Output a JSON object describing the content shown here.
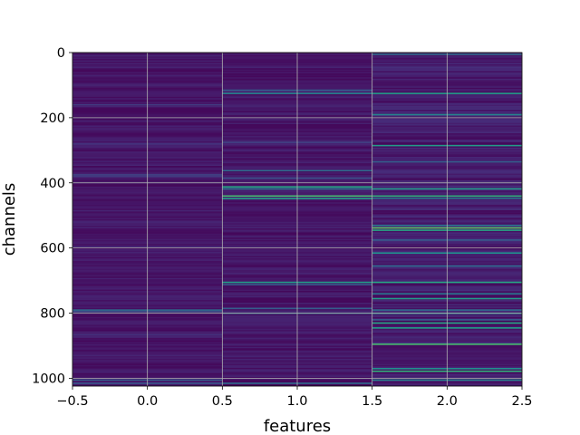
{
  "chart_data": {
    "type": "heatmap",
    "title": "",
    "xlabel": "features",
    "ylabel": "channels",
    "xlim": [
      -0.5,
      2.5
    ],
    "ylim": [
      1024,
      0
    ],
    "y_inverted": true,
    "x_ticks": [
      -0.5,
      0.0,
      0.5,
      1.0,
      1.5,
      2.0,
      2.5
    ],
    "x_tick_labels": [
      "−0.5",
      "0.0",
      "0.5",
      "1.0",
      "1.5",
      "2.0",
      "2.5"
    ],
    "y_ticks": [
      0,
      200,
      400,
      600,
      800,
      1000
    ],
    "y_tick_labels": [
      "0",
      "200",
      "400",
      "600",
      "800",
      "1000"
    ],
    "grid": true,
    "colormap": "viridis",
    "background_color": "#440154",
    "n_columns": 3,
    "n_rows": 1024,
    "columns": [
      {
        "feature": 0,
        "highlights": [
          {
            "channel": 160,
            "value": 0.18
          },
          {
            "channel": 280,
            "value": 0.15
          },
          {
            "channel": 375,
            "value": 0.2
          },
          {
            "channel": 380,
            "value": 0.18
          },
          {
            "channel": 595,
            "value": 0.12
          },
          {
            "channel": 790,
            "value": 0.35
          },
          {
            "channel": 795,
            "value": 0.25
          },
          {
            "channel": 865,
            "value": 0.15
          },
          {
            "channel": 1005,
            "value": 0.3
          },
          {
            "channel": 1015,
            "value": 0.28
          }
        ]
      },
      {
        "feature": 1,
        "highlights": [
          {
            "channel": 115,
            "value": 0.3
          },
          {
            "channel": 125,
            "value": 0.45
          },
          {
            "channel": 275,
            "value": 0.2
          },
          {
            "channel": 362,
            "value": 0.35
          },
          {
            "channel": 385,
            "value": 0.25
          },
          {
            "channel": 412,
            "value": 0.6
          },
          {
            "channel": 418,
            "value": 0.4
          },
          {
            "channel": 440,
            "value": 0.7
          },
          {
            "channel": 448,
            "value": 0.55
          },
          {
            "channel": 705,
            "value": 0.55
          },
          {
            "channel": 712,
            "value": 0.3
          },
          {
            "channel": 785,
            "value": 0.3
          },
          {
            "channel": 800,
            "value": 0.35
          },
          {
            "channel": 1015,
            "value": 0.35
          }
        ]
      },
      {
        "feature": 2,
        "highlights": [
          {
            "channel": 5,
            "value": 0.35
          },
          {
            "channel": 125,
            "value": 0.55
          },
          {
            "channel": 190,
            "value": 0.45
          },
          {
            "channel": 285,
            "value": 0.55
          },
          {
            "channel": 335,
            "value": 0.3
          },
          {
            "channel": 418,
            "value": 0.55
          },
          {
            "channel": 440,
            "value": 0.65
          },
          {
            "channel": 447,
            "value": 0.4
          },
          {
            "channel": 530,
            "value": 0.4
          },
          {
            "channel": 538,
            "value": 0.75
          },
          {
            "channel": 545,
            "value": 0.6
          },
          {
            "channel": 575,
            "value": 0.3
          },
          {
            "channel": 615,
            "value": 0.5
          },
          {
            "channel": 655,
            "value": 0.35
          },
          {
            "channel": 705,
            "value": 0.6
          },
          {
            "channel": 740,
            "value": 0.4
          },
          {
            "channel": 755,
            "value": 0.55
          },
          {
            "channel": 790,
            "value": 0.35
          },
          {
            "channel": 800,
            "value": 0.45
          },
          {
            "channel": 820,
            "value": 0.3
          },
          {
            "channel": 830,
            "value": 0.6
          },
          {
            "channel": 845,
            "value": 0.55
          },
          {
            "channel": 895,
            "value": 0.7
          },
          {
            "channel": 970,
            "value": 0.5
          },
          {
            "channel": 978,
            "value": 0.65
          },
          {
            "channel": 1005,
            "value": 0.45
          }
        ]
      }
    ]
  }
}
